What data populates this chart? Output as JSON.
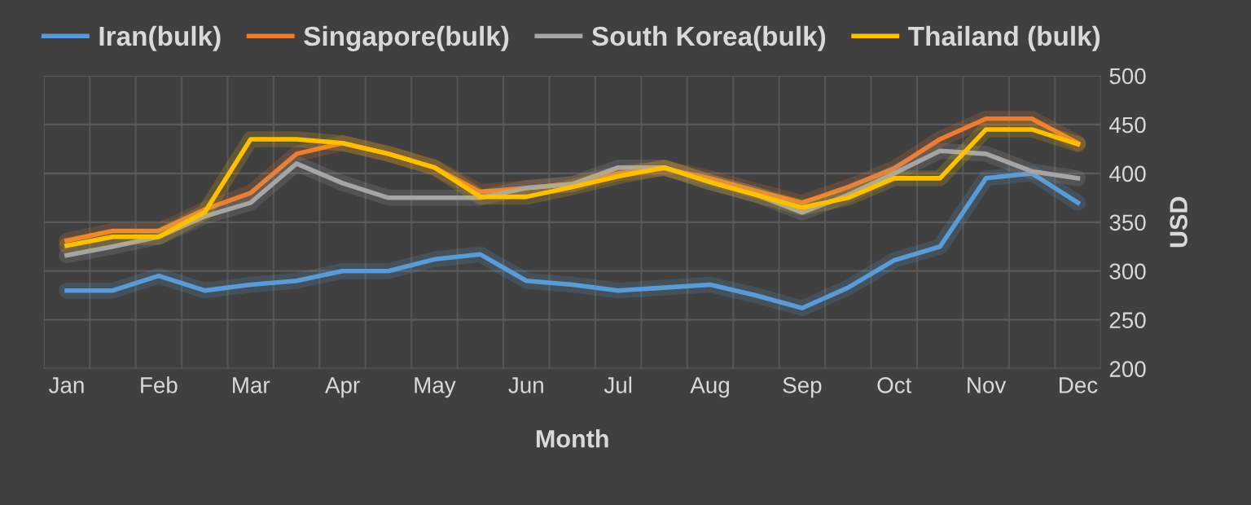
{
  "chart_data": {
    "type": "line",
    "xlabel": "Month",
    "ylabel": "USD",
    "categories": [
      "Jan",
      null,
      "Feb",
      null,
      "Mar",
      null,
      "Apr",
      null,
      "May",
      null,
      "Jun",
      null,
      "Jul",
      null,
      "Aug",
      null,
      "Sep",
      null,
      "Oct",
      null,
      "Nov",
      null,
      "Dec"
    ],
    "series": [
      {
        "name": "Iran(bulk)",
        "color": "#5b9bd5",
        "values": [
          280,
          280,
          295,
          280,
          286,
          290,
          300,
          300,
          312,
          317,
          290,
          286,
          280,
          283,
          286,
          275,
          262,
          283,
          311,
          325,
          395,
          400,
          370
        ]
      },
      {
        "name": "Singapore(bulk)",
        "color": "#ed7d31",
        "values": [
          331,
          341,
          341,
          363,
          380,
          420,
          431,
          420,
          406,
          381,
          385,
          389,
          400,
          405,
          395,
          382,
          370,
          386,
          405,
          435,
          456,
          456,
          431
        ]
      },
      {
        "name": "South Korea(bulk)",
        "color": "#a5a5a5",
        "values": [
          316,
          325,
          335,
          356,
          370,
          410,
          390,
          375,
          375,
          375,
          385,
          389,
          406,
          406,
          391,
          378,
          360,
          378,
          400,
          423,
          420,
          402,
          395
        ]
      },
      {
        "name": "Thailand (bulk)",
        "color": "#ffc000",
        "values": [
          326,
          335,
          335,
          360,
          435,
          435,
          431,
          420,
          406,
          376,
          376,
          386,
          397,
          406,
          391,
          378,
          365,
          375,
          395,
          395,
          445,
          445,
          430
        ]
      }
    ],
    "ylim": [
      200,
      500
    ],
    "yticks": [
      200,
      250,
      300,
      350,
      400,
      450,
      500
    ],
    "grid": true,
    "legend": "top",
    "marker": "none",
    "line_style": "solid"
  }
}
